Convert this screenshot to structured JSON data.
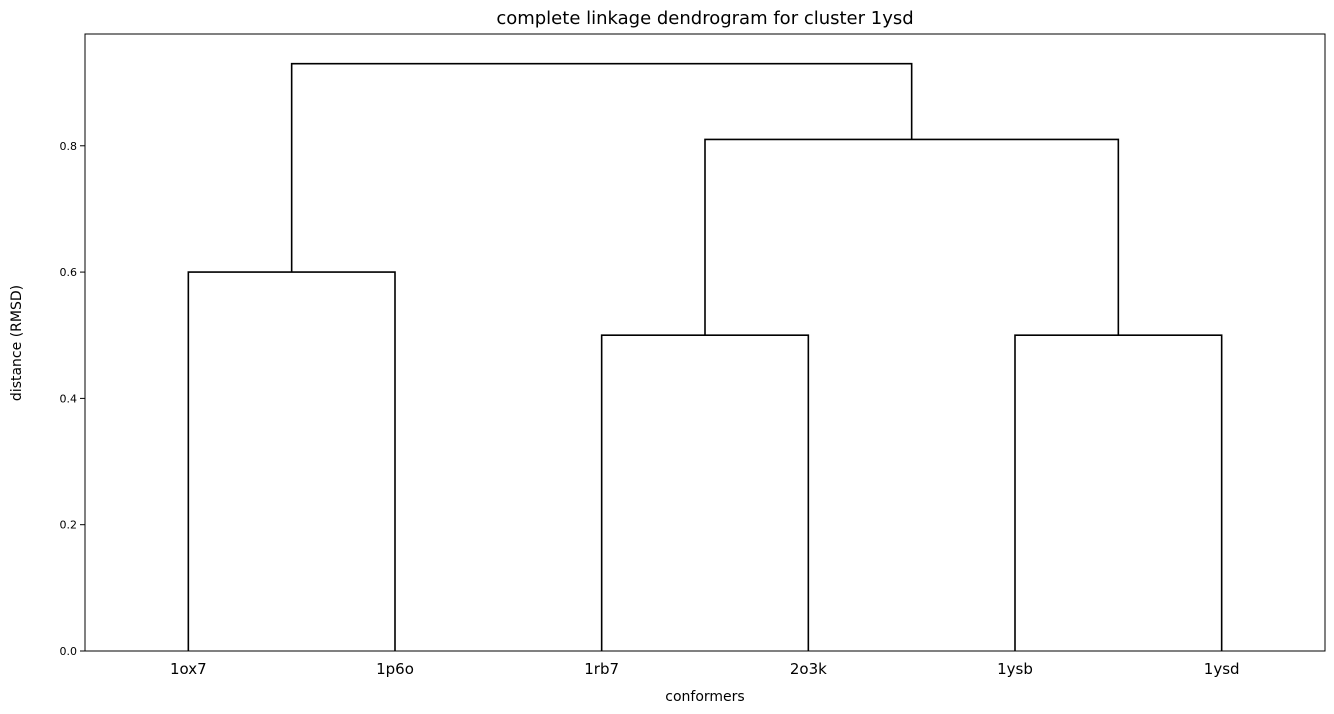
{
  "chart_data": {
    "type": "dendrogram",
    "title": "complete linkage dendrogram for cluster 1ysd",
    "xlabel": "conformers",
    "ylabel": "distance (RMSD)",
    "leaves": [
      "1ox7",
      "1p6o",
      "1rb7",
      "2o3k",
      "1ysb",
      "1ysd"
    ],
    "ylim": [
      0,
      0.977
    ],
    "yticks": [
      0.0,
      0.2,
      0.4,
      0.6,
      0.8
    ],
    "ytick_labels": [
      "0.0",
      "0.2",
      "0.4",
      "0.6",
      "0.8"
    ],
    "links": [
      {
        "left": "1ox7",
        "right": "1p6o",
        "height": 0.6
      },
      {
        "left": "1rb7",
        "right": "2o3k",
        "height": 0.5
      },
      {
        "left": "1ysb",
        "right": "1ysd",
        "height": 0.5
      },
      {
        "left": "{1rb7,2o3k}",
        "right": "{1ysb,1ysd}",
        "height": 0.81
      },
      {
        "left": "{1ox7,1p6o}",
        "right": "{1rb7,2o3k,1ysb,1ysd}",
        "height": 0.93
      }
    ],
    "link_color": "#000000",
    "grid": false
  }
}
